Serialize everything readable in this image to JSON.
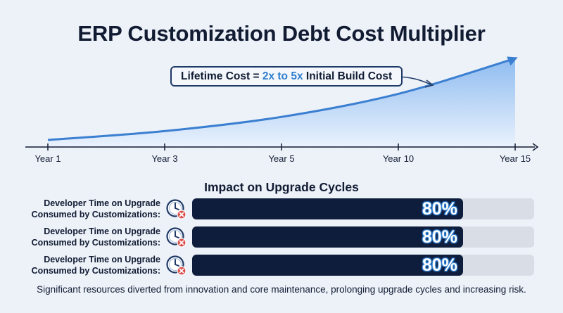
{
  "title": "ERP Customization Debt Cost Multiplier",
  "callout": {
    "prefix": "Lifetime Cost = ",
    "highlight": "2x to 5x",
    "suffix": " Initial Build Cost"
  },
  "chart_data": {
    "type": "area",
    "categories": [
      "Year 1",
      "Year 3",
      "Year 5",
      "Year 10",
      "Year 15"
    ],
    "values": [
      1.0,
      1.5,
      2.3,
      3.6,
      5.6
    ],
    "ylim": [
      0.6,
      6.0
    ],
    "grid": false,
    "legend": "none",
    "colors": {
      "line": "#3b7fd1",
      "fill_top": "#8fbcf0",
      "fill_bottom": "#eaf2fd",
      "axis": "#111c33"
    }
  },
  "impact": {
    "title": "Impact on Upgrade Cycles",
    "rows": [
      {
        "label_line1": "Developer Time on Upgrade",
        "label_line2": "Consumed by Customizations:",
        "value_text": "80%",
        "value": 80
      },
      {
        "label_line1": "Developer Time on Upgrade",
        "label_line2": "Consumed by Customizations:",
        "value_text": "80%",
        "value": 80
      },
      {
        "label_line1": "Developer Time on Upgrade",
        "label_line2": "Consumed by Customizations:",
        "value_text": "80%",
        "value": 80
      }
    ],
    "icon": "clock-with-x-icon",
    "colors": {
      "fill": "#0f1d3d",
      "track": "#d9dee6",
      "value_outline": "#2f7fd0",
      "icon_badge": "#d9534f"
    }
  },
  "footnote": "Significant resources diverted from innovation and core maintenance, prolonging upgrade cycles and increasing risk."
}
